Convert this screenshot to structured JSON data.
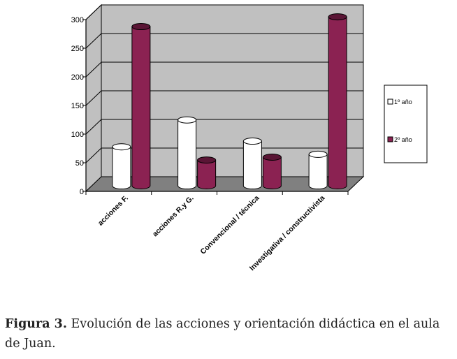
{
  "chart_data": {
    "type": "bar",
    "categories": [
      "acciones F.",
      "acciones R.y G.",
      "Convencional / técnica",
      "Investigativa / constructivista"
    ],
    "series": [
      {
        "name": "1º año",
        "values": [
          68,
          115,
          78,
          55
        ],
        "color": "#ffffff"
      },
      {
        "name": "2º año",
        "values": [
          278,
          45,
          50,
          295
        ],
        "color": "#8b2252"
      }
    ],
    "yticks": [
      0,
      50,
      100,
      150,
      200,
      250,
      300
    ],
    "ylim": [
      0,
      300
    ],
    "grid": true,
    "legend_position": "right",
    "wall_color": "#c0c0c0",
    "floor_color": "#808080"
  },
  "caption": {
    "label": "Figura 3.",
    "text": "Evolución de las acciones y orientación didáctica en el aula de Juan."
  }
}
